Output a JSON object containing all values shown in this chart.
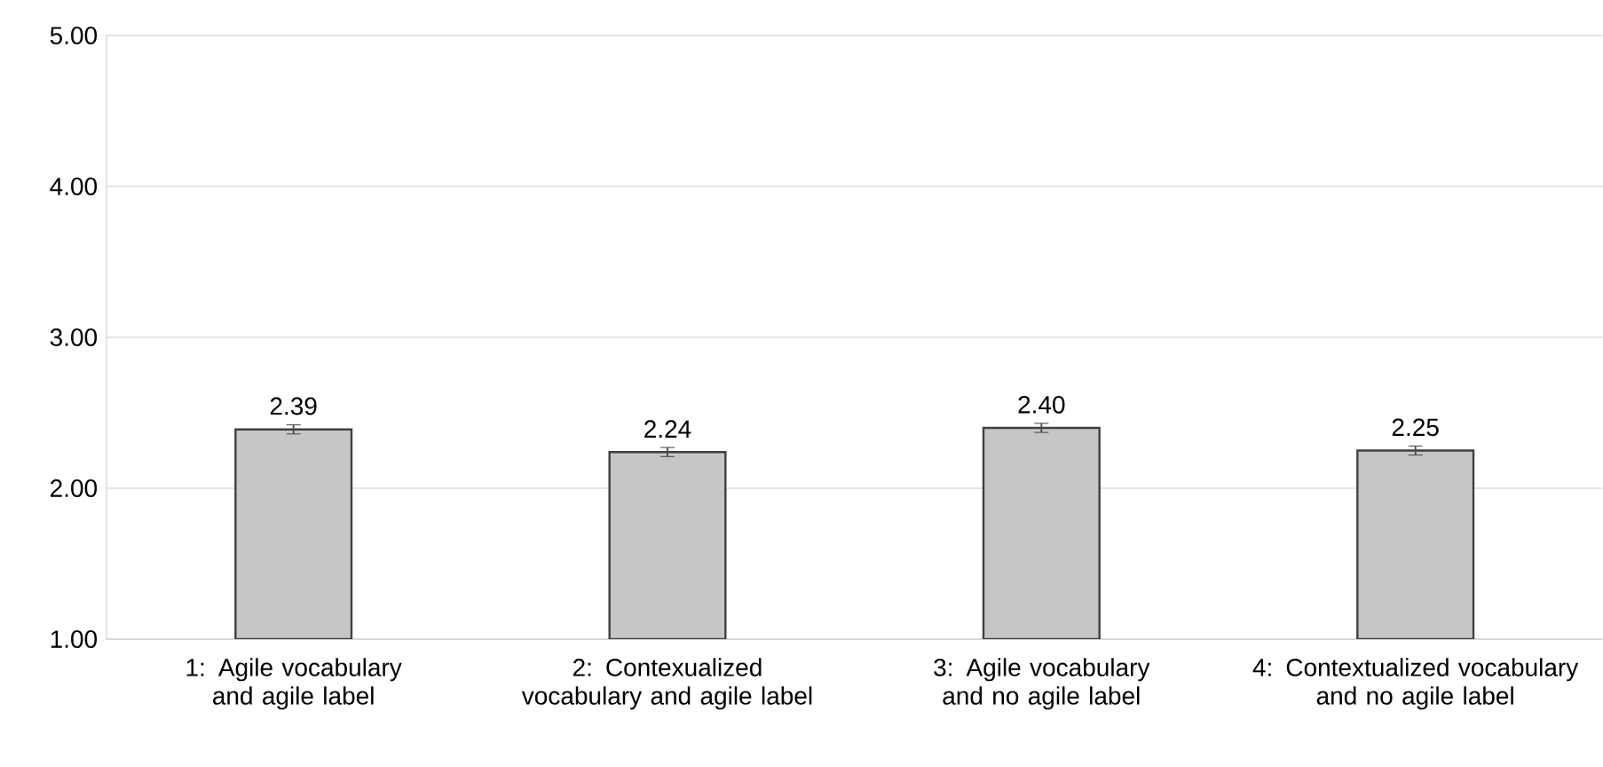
{
  "chart_data": {
    "type": "bar",
    "categories": [
      "1: Agile vocabulary and agile label",
      "2: Contexualized vocabulary and agile label",
      "3: Agile vocabulary and no agile label",
      "4: Contextualized vocabulary and no agile label"
    ],
    "values": [
      2.39,
      2.24,
      2.4,
      2.25
    ],
    "errors": [
      0.03,
      0.03,
      0.03,
      0.03
    ],
    "value_labels": [
      "2.39",
      "2.24",
      "2.40",
      "2.25"
    ],
    "color": "#c6c6c6",
    "ylim": [
      1,
      5
    ],
    "yticks": [
      {
        "value": 1,
        "label": "1.00"
      },
      {
        "value": 2,
        "label": "2.00"
      },
      {
        "value": 3,
        "label": "3.00"
      },
      {
        "value": 4,
        "label": "4.00"
      },
      {
        "value": 5,
        "label": "5.00"
      }
    ],
    "grid": "y"
  }
}
